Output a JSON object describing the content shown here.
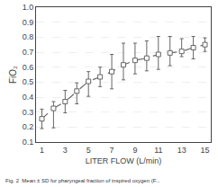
{
  "chart_data": {
    "type": "line",
    "xlabel": "LITER FLOW (L/min)",
    "ylabel": "FiO₂",
    "caption": "Fig. 2  Mean ± SD for pharyngeal fraction of inspired oxygen (F...",
    "x": [
      1,
      2,
      3,
      4,
      5,
      6,
      7,
      8,
      9,
      10,
      11,
      12,
      13,
      14,
      15
    ],
    "series": [
      {
        "color": "#666666",
        "marker": "square",
        "line_style": "dashed",
        "values": [
          0.255,
          0.325,
          0.37,
          0.44,
          0.505,
          0.535,
          0.57,
          0.615,
          0.645,
          0.66,
          0.685,
          0.695,
          0.705,
          0.73,
          0.75
        ],
        "error_low": [
          0.065,
          0.13,
          0.075,
          0.085,
          0.1,
          0.065,
          0.115,
          0.1,
          0.09,
          0.085,
          0.1,
          0.085,
          0.035,
          0.075,
          0.045
        ],
        "error_high": [
          0.065,
          0.045,
          0.075,
          0.055,
          0.065,
          0.065,
          0.115,
          0.145,
          0.115,
          0.115,
          0.12,
          0.11,
          0.085,
          0.075,
          0.045
        ]
      }
    ],
    "xlim": [
      0.5,
      15.5
    ],
    "ylim": [
      0.1,
      1.0
    ],
    "xticks": [
      1,
      3,
      5,
      7,
      9,
      11,
      13,
      15
    ],
    "yticks": [
      0.1,
      0.2,
      0.3,
      0.4,
      0.5,
      0.6,
      0.7,
      0.8,
      0.9,
      {
        "value": 1.0,
        "label": "1.0"
      }
    ],
    "grid": true
  }
}
